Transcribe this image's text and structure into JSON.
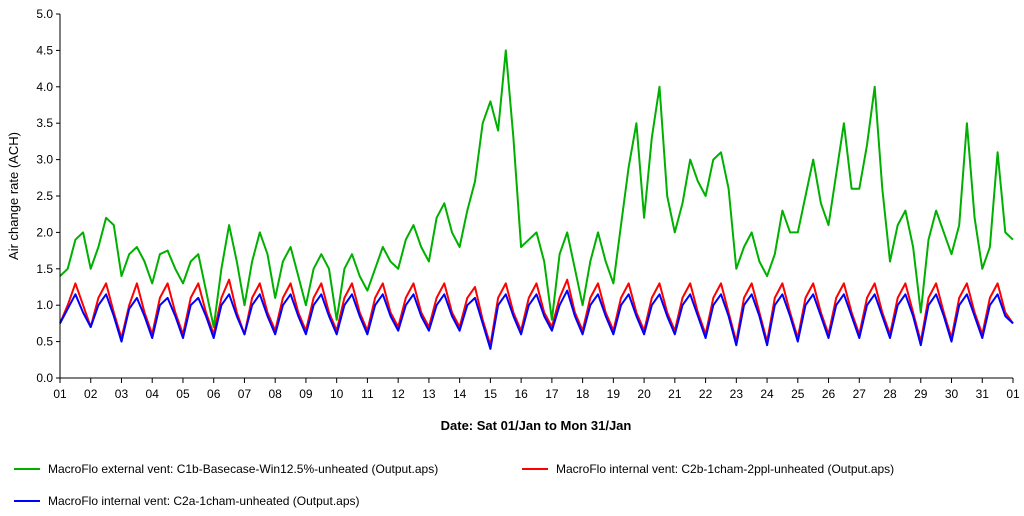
{
  "chart_data": {
    "type": "line",
    "title": "",
    "xlabel": "Date: Sat 01/Jan to Mon 31/Jan",
    "ylabel": "Air change rate (ACH)",
    "ylim": [
      0,
      5.0
    ],
    "yticks": [
      "0.0",
      "0.5",
      "1.0",
      "1.5",
      "2.0",
      "2.5",
      "3.0",
      "3.5",
      "4.0",
      "4.5",
      "5.0"
    ],
    "xlim": [
      0,
      31
    ],
    "xticks": [
      "01",
      "02",
      "03",
      "04",
      "05",
      "06",
      "07",
      "08",
      "09",
      "10",
      "11",
      "12",
      "13",
      "14",
      "15",
      "16",
      "17",
      "18",
      "19",
      "20",
      "21",
      "22",
      "23",
      "24",
      "25",
      "26",
      "27",
      "28",
      "29",
      "30",
      "31",
      "01"
    ],
    "grid": false,
    "legend_position": "bottom",
    "series": [
      {
        "name": "MacroFlo external vent: C1b-Basecase-Win12.5%-unheated (Output.aps)",
        "color": "#00b000",
        "x": [
          0,
          0.25,
          0.5,
          0.75,
          1,
          1.25,
          1.5,
          1.75,
          2,
          2.25,
          2.5,
          2.75,
          3,
          3.25,
          3.5,
          3.75,
          4,
          4.25,
          4.5,
          4.75,
          5,
          5.25,
          5.5,
          5.75,
          6,
          6.25,
          6.5,
          6.75,
          7,
          7.25,
          7.5,
          7.75,
          8,
          8.25,
          8.5,
          8.75,
          9,
          9.25,
          9.5,
          9.75,
          10,
          10.25,
          10.5,
          10.75,
          11,
          11.25,
          11.5,
          11.75,
          12,
          12.25,
          12.5,
          12.75,
          13,
          13.25,
          13.5,
          13.75,
          14,
          14.25,
          14.5,
          14.75,
          15,
          15.25,
          15.5,
          15.75,
          16,
          16.25,
          16.5,
          16.75,
          17,
          17.25,
          17.5,
          17.75,
          18,
          18.25,
          18.5,
          18.75,
          19,
          19.25,
          19.5,
          19.75,
          20,
          20.25,
          20.5,
          20.75,
          21,
          21.25,
          21.5,
          21.75,
          22,
          22.25,
          22.5,
          22.75,
          23,
          23.25,
          23.5,
          23.75,
          24,
          24.25,
          24.5,
          24.75,
          25,
          25.25,
          25.5,
          25.75,
          26,
          26.25,
          26.5,
          26.75,
          27,
          27.25,
          27.5,
          27.75,
          28,
          28.25,
          28.5,
          28.75,
          29,
          29.25,
          29.5,
          29.75,
          30,
          30.25,
          30.5,
          30.75,
          31
        ],
        "y": [
          1.4,
          1.5,
          1.9,
          2.0,
          1.5,
          1.8,
          2.2,
          2.1,
          1.4,
          1.7,
          1.8,
          1.6,
          1.3,
          1.7,
          1.75,
          1.5,
          1.3,
          1.6,
          1.7,
          1.2,
          0.7,
          1.5,
          2.1,
          1.6,
          1.0,
          1.6,
          2.0,
          1.7,
          1.1,
          1.6,
          1.8,
          1.4,
          1.0,
          1.5,
          1.7,
          1.5,
          0.8,
          1.5,
          1.7,
          1.4,
          1.2,
          1.5,
          1.8,
          1.6,
          1.5,
          1.9,
          2.1,
          1.8,
          1.6,
          2.2,
          2.4,
          2.0,
          1.8,
          2.3,
          2.7,
          3.5,
          3.8,
          3.4,
          4.5,
          3.3,
          1.8,
          1.9,
          2.0,
          1.6,
          0.8,
          1.7,
          2.0,
          1.5,
          1.0,
          1.6,
          2.0,
          1.6,
          1.3,
          2.1,
          2.9,
          3.5,
          2.2,
          3.3,
          4.0,
          2.5,
          2.0,
          2.4,
          3.0,
          2.7,
          2.5,
          3.0,
          3.1,
          2.6,
          1.5,
          1.8,
          2.0,
          1.6,
          1.4,
          1.7,
          2.3,
          2.0,
          2.0,
          2.5,
          3.0,
          2.4,
          2.1,
          2.8,
          3.5,
          2.6,
          2.6,
          3.2,
          4.0,
          2.6,
          1.6,
          2.1,
          2.3,
          1.8,
          0.9,
          1.9,
          2.3,
          2.0,
          1.7,
          2.1,
          3.5,
          2.2,
          1.5,
          1.8,
          3.1,
          2.0,
          1.9
        ]
      },
      {
        "name": "MacroFlo internal vent: C2b-1cham-2ppl-unheated (Output.aps)",
        "color": "#ff0000",
        "x": [
          0,
          0.25,
          0.5,
          0.75,
          1,
          1.25,
          1.5,
          1.75,
          2,
          2.25,
          2.5,
          2.75,
          3,
          3.25,
          3.5,
          3.75,
          4,
          4.25,
          4.5,
          4.75,
          5,
          5.25,
          5.5,
          5.75,
          6,
          6.25,
          6.5,
          6.75,
          7,
          7.25,
          7.5,
          7.75,
          8,
          8.25,
          8.5,
          8.75,
          9,
          9.25,
          9.5,
          9.75,
          10,
          10.25,
          10.5,
          10.75,
          11,
          11.25,
          11.5,
          11.75,
          12,
          12.25,
          12.5,
          12.75,
          13,
          13.25,
          13.5,
          13.75,
          14,
          14.25,
          14.5,
          14.75,
          15,
          15.25,
          15.5,
          15.75,
          16,
          16.25,
          16.5,
          16.75,
          17,
          17.25,
          17.5,
          17.75,
          18,
          18.25,
          18.5,
          18.75,
          19,
          19.25,
          19.5,
          19.75,
          20,
          20.25,
          20.5,
          20.75,
          21,
          21.25,
          21.5,
          21.75,
          22,
          22.25,
          22.5,
          22.75,
          23,
          23.25,
          23.5,
          23.75,
          24,
          24.25,
          24.5,
          24.75,
          25,
          25.25,
          25.5,
          25.75,
          26,
          26.25,
          26.5,
          26.75,
          27,
          27.25,
          27.5,
          27.75,
          28,
          28.25,
          28.5,
          28.75,
          29,
          29.25,
          29.5,
          29.75,
          30,
          30.25,
          30.5,
          30.75,
          31
        ],
        "y": [
          0.75,
          1.0,
          1.3,
          1.0,
          0.7,
          1.1,
          1.3,
          0.9,
          0.55,
          1.0,
          1.3,
          0.9,
          0.6,
          1.1,
          1.3,
          0.9,
          0.6,
          1.1,
          1.3,
          0.9,
          0.6,
          1.1,
          1.35,
          0.9,
          0.6,
          1.1,
          1.3,
          0.9,
          0.65,
          1.1,
          1.3,
          0.9,
          0.65,
          1.1,
          1.3,
          0.9,
          0.65,
          1.1,
          1.3,
          0.9,
          0.65,
          1.1,
          1.3,
          0.9,
          0.7,
          1.1,
          1.3,
          0.9,
          0.7,
          1.1,
          1.3,
          0.9,
          0.7,
          1.1,
          1.25,
          0.8,
          0.45,
          1.1,
          1.3,
          0.9,
          0.65,
          1.1,
          1.3,
          0.9,
          0.7,
          1.1,
          1.35,
          0.9,
          0.65,
          1.1,
          1.3,
          0.9,
          0.65,
          1.1,
          1.3,
          0.9,
          0.65,
          1.1,
          1.3,
          0.9,
          0.65,
          1.1,
          1.3,
          0.9,
          0.6,
          1.1,
          1.3,
          0.9,
          0.5,
          1.1,
          1.3,
          0.9,
          0.5,
          1.1,
          1.3,
          0.9,
          0.55,
          1.1,
          1.3,
          0.9,
          0.6,
          1.1,
          1.3,
          0.9,
          0.6,
          1.1,
          1.3,
          0.9,
          0.6,
          1.1,
          1.3,
          0.9,
          0.5,
          1.1,
          1.3,
          0.9,
          0.55,
          1.1,
          1.3,
          0.9,
          0.6,
          1.1,
          1.3,
          0.9,
          0.75
        ]
      },
      {
        "name": "MacroFlo internal vent: C2a-1cham-unheated (Output.aps)",
        "color": "#0000ff",
        "x": [
          0,
          0.25,
          0.5,
          0.75,
          1,
          1.25,
          1.5,
          1.75,
          2,
          2.25,
          2.5,
          2.75,
          3,
          3.25,
          3.5,
          3.75,
          4,
          4.25,
          4.5,
          4.75,
          5,
          5.25,
          5.5,
          5.75,
          6,
          6.25,
          6.5,
          6.75,
          7,
          7.25,
          7.5,
          7.75,
          8,
          8.25,
          8.5,
          8.75,
          9,
          9.25,
          9.5,
          9.75,
          10,
          10.25,
          10.5,
          10.75,
          11,
          11.25,
          11.5,
          11.75,
          12,
          12.25,
          12.5,
          12.75,
          13,
          13.25,
          13.5,
          13.75,
          14,
          14.25,
          14.5,
          14.75,
          15,
          15.25,
          15.5,
          15.75,
          16,
          16.25,
          16.5,
          16.75,
          17,
          17.25,
          17.5,
          17.75,
          18,
          18.25,
          18.5,
          18.75,
          19,
          19.25,
          19.5,
          19.75,
          20,
          20.25,
          20.5,
          20.75,
          21,
          21.25,
          21.5,
          21.75,
          22,
          22.25,
          22.5,
          22.75,
          23,
          23.25,
          23.5,
          23.75,
          24,
          24.25,
          24.5,
          24.75,
          25,
          25.25,
          25.5,
          25.75,
          26,
          26.25,
          26.5,
          26.75,
          27,
          27.25,
          27.5,
          27.75,
          28,
          28.25,
          28.5,
          28.75,
          29,
          29.25,
          29.5,
          29.75,
          30,
          30.25,
          30.5,
          30.75,
          31
        ],
        "y": [
          0.75,
          0.95,
          1.15,
          0.9,
          0.7,
          1.0,
          1.15,
          0.85,
          0.5,
          0.95,
          1.1,
          0.85,
          0.55,
          1.0,
          1.1,
          0.85,
          0.55,
          1.0,
          1.1,
          0.85,
          0.55,
          1.0,
          1.15,
          0.85,
          0.6,
          1.0,
          1.15,
          0.85,
          0.6,
          1.0,
          1.15,
          0.85,
          0.6,
          1.0,
          1.15,
          0.85,
          0.6,
          1.0,
          1.15,
          0.85,
          0.6,
          1.0,
          1.15,
          0.85,
          0.65,
          1.0,
          1.15,
          0.85,
          0.65,
          1.0,
          1.15,
          0.85,
          0.65,
          1.0,
          1.1,
          0.75,
          0.4,
          1.0,
          1.15,
          0.85,
          0.6,
          1.0,
          1.15,
          0.85,
          0.65,
          1.0,
          1.2,
          0.85,
          0.6,
          1.0,
          1.15,
          0.85,
          0.6,
          1.0,
          1.15,
          0.85,
          0.6,
          1.0,
          1.15,
          0.85,
          0.6,
          1.0,
          1.15,
          0.85,
          0.55,
          1.0,
          1.15,
          0.85,
          0.45,
          1.0,
          1.15,
          0.85,
          0.45,
          1.0,
          1.15,
          0.85,
          0.5,
          1.0,
          1.15,
          0.85,
          0.55,
          1.0,
          1.15,
          0.85,
          0.55,
          1.0,
          1.15,
          0.85,
          0.55,
          1.0,
          1.15,
          0.85,
          0.45,
          1.0,
          1.15,
          0.85,
          0.5,
          1.0,
          1.15,
          0.85,
          0.55,
          1.0,
          1.15,
          0.85,
          0.75
        ]
      }
    ]
  }
}
